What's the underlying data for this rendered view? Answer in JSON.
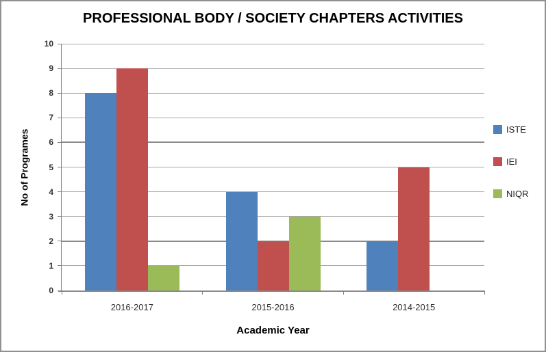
{
  "chart_data": {
    "type": "bar",
    "title": "PROFESSIONAL BODY / SOCIETY CHAPTERS ACTIVITIES",
    "xlabel": "Academic Year",
    "ylabel": "No of Programes",
    "categories": [
      "2016-2017",
      "2015-2016",
      "2014-2015"
    ],
    "series": [
      {
        "name": "ISTE",
        "color": "#4F81BD",
        "values": [
          8,
          4,
          2
        ]
      },
      {
        "name": "IEI",
        "color": "#C0504D",
        "values": [
          9,
          2,
          5
        ]
      },
      {
        "name": "NIQR",
        "color": "#9BBB59",
        "values": [
          1,
          3,
          0
        ]
      }
    ],
    "ylim": [
      0,
      10
    ],
    "ytick_step": 1,
    "yticks": [
      0,
      1,
      2,
      3,
      4,
      5,
      6,
      7,
      8,
      9,
      10
    ],
    "grid": true,
    "gridline_color": "#a6a6a6",
    "axis_color": "#7f7f7f",
    "legend_position": "right",
    "legend_labels": [
      "ISTE",
      "IEI",
      "NIQR"
    ]
  }
}
